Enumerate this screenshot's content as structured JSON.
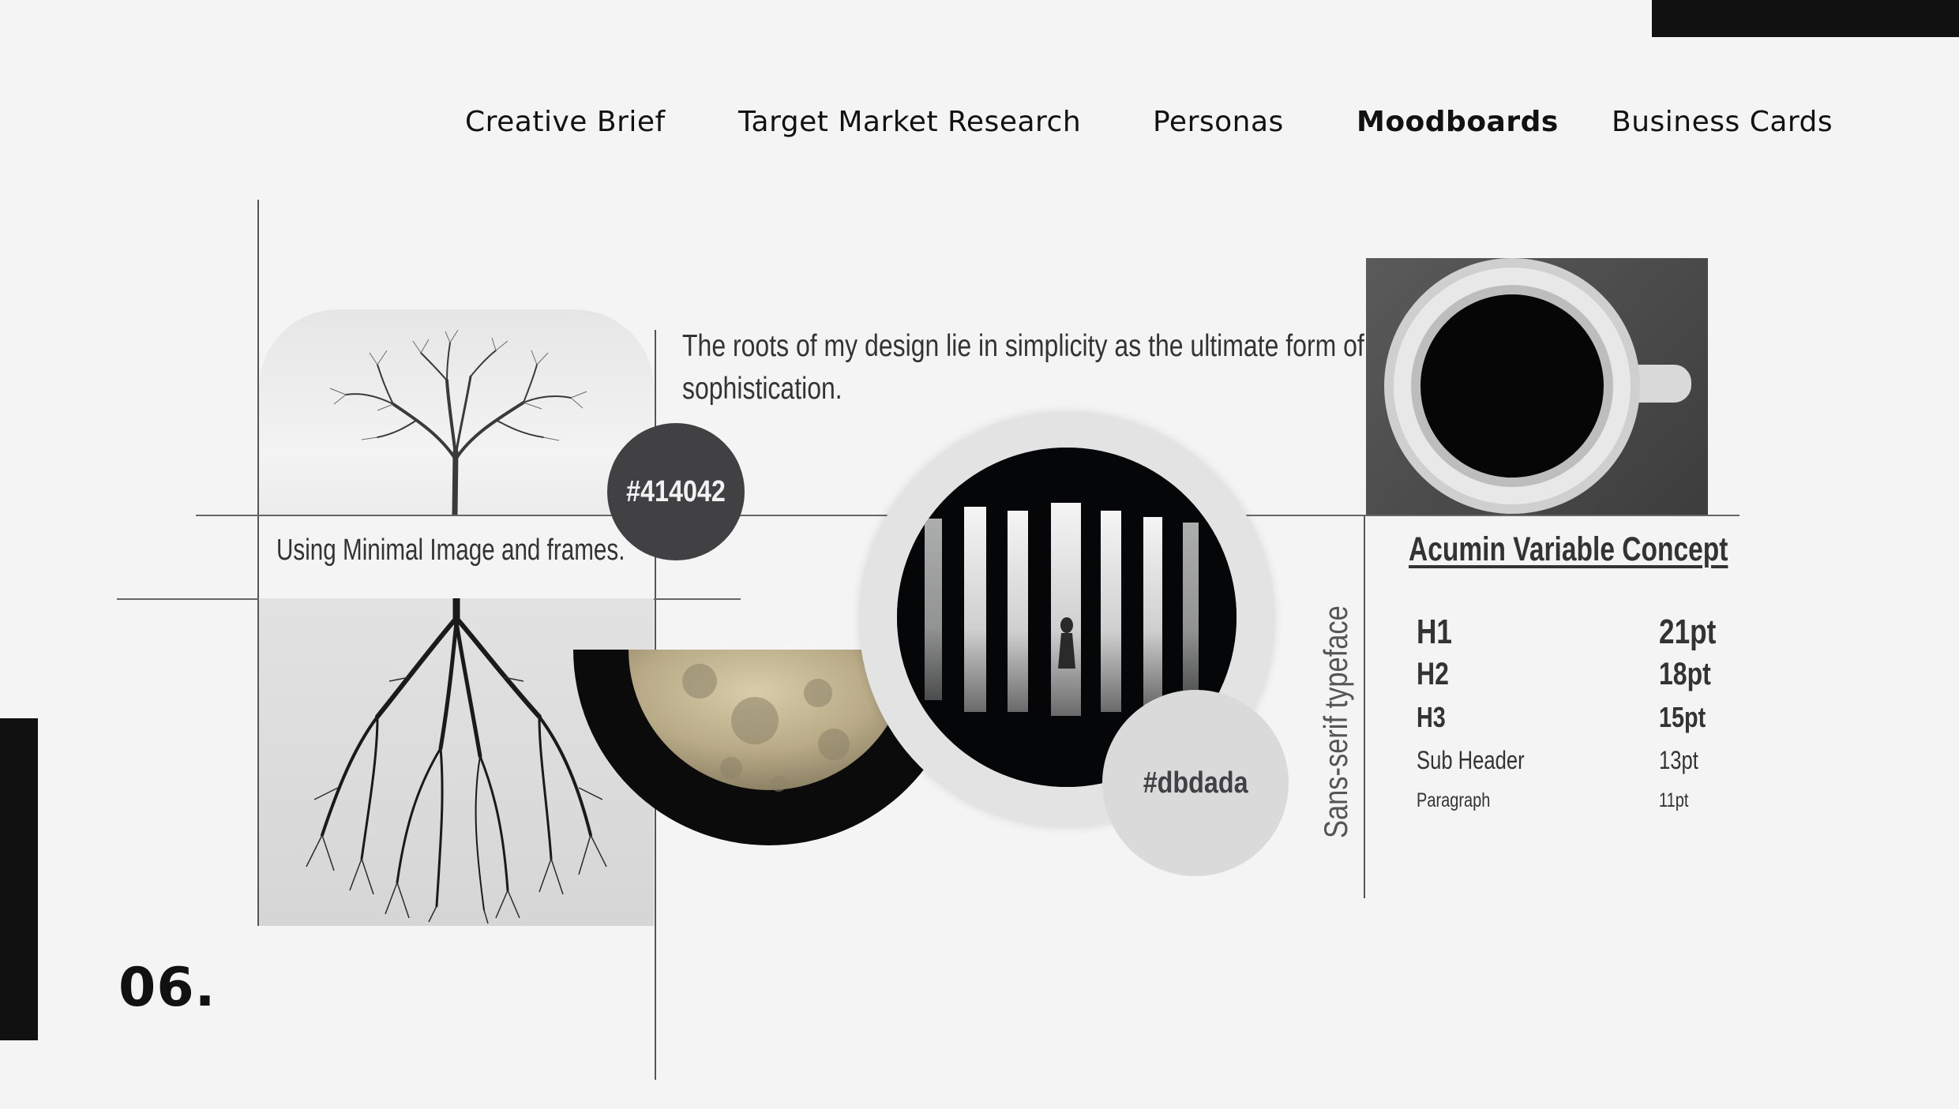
{
  "nav": {
    "items": [
      {
        "label": "Creative Brief"
      },
      {
        "label": "Target Market Research"
      },
      {
        "label": "Personas"
      },
      {
        "label": "Moodboards"
      },
      {
        "label": "Business Cards"
      }
    ],
    "active": "Moodboards"
  },
  "quote": "The roots of my design lie in simplicity as the ultimate form of sophistication.",
  "minimal_caption": "Using Minimal Image and frames.",
  "swatches": {
    "dark": {
      "label": "#414042",
      "color": "#414042"
    },
    "light": {
      "label": "#dbdada",
      "color": "#dbdada"
    }
  },
  "typeface": {
    "category_label": "Sans-serif typeface",
    "name": "Acumin Variable Concept",
    "scale": [
      {
        "label": "H1",
        "value": "21pt"
      },
      {
        "label": "H2",
        "value": "18pt"
      },
      {
        "label": "H3",
        "value": "15pt"
      },
      {
        "label": "Sub Header",
        "value": "13pt"
      },
      {
        "label": "Paragraph",
        "value": "11pt"
      }
    ]
  },
  "images": {
    "tree": "tree-image",
    "roots": "roots-image",
    "moon": "moon-image",
    "gallery": "gallery-image",
    "coffee": "coffee-cup-image"
  },
  "page_number": "06."
}
